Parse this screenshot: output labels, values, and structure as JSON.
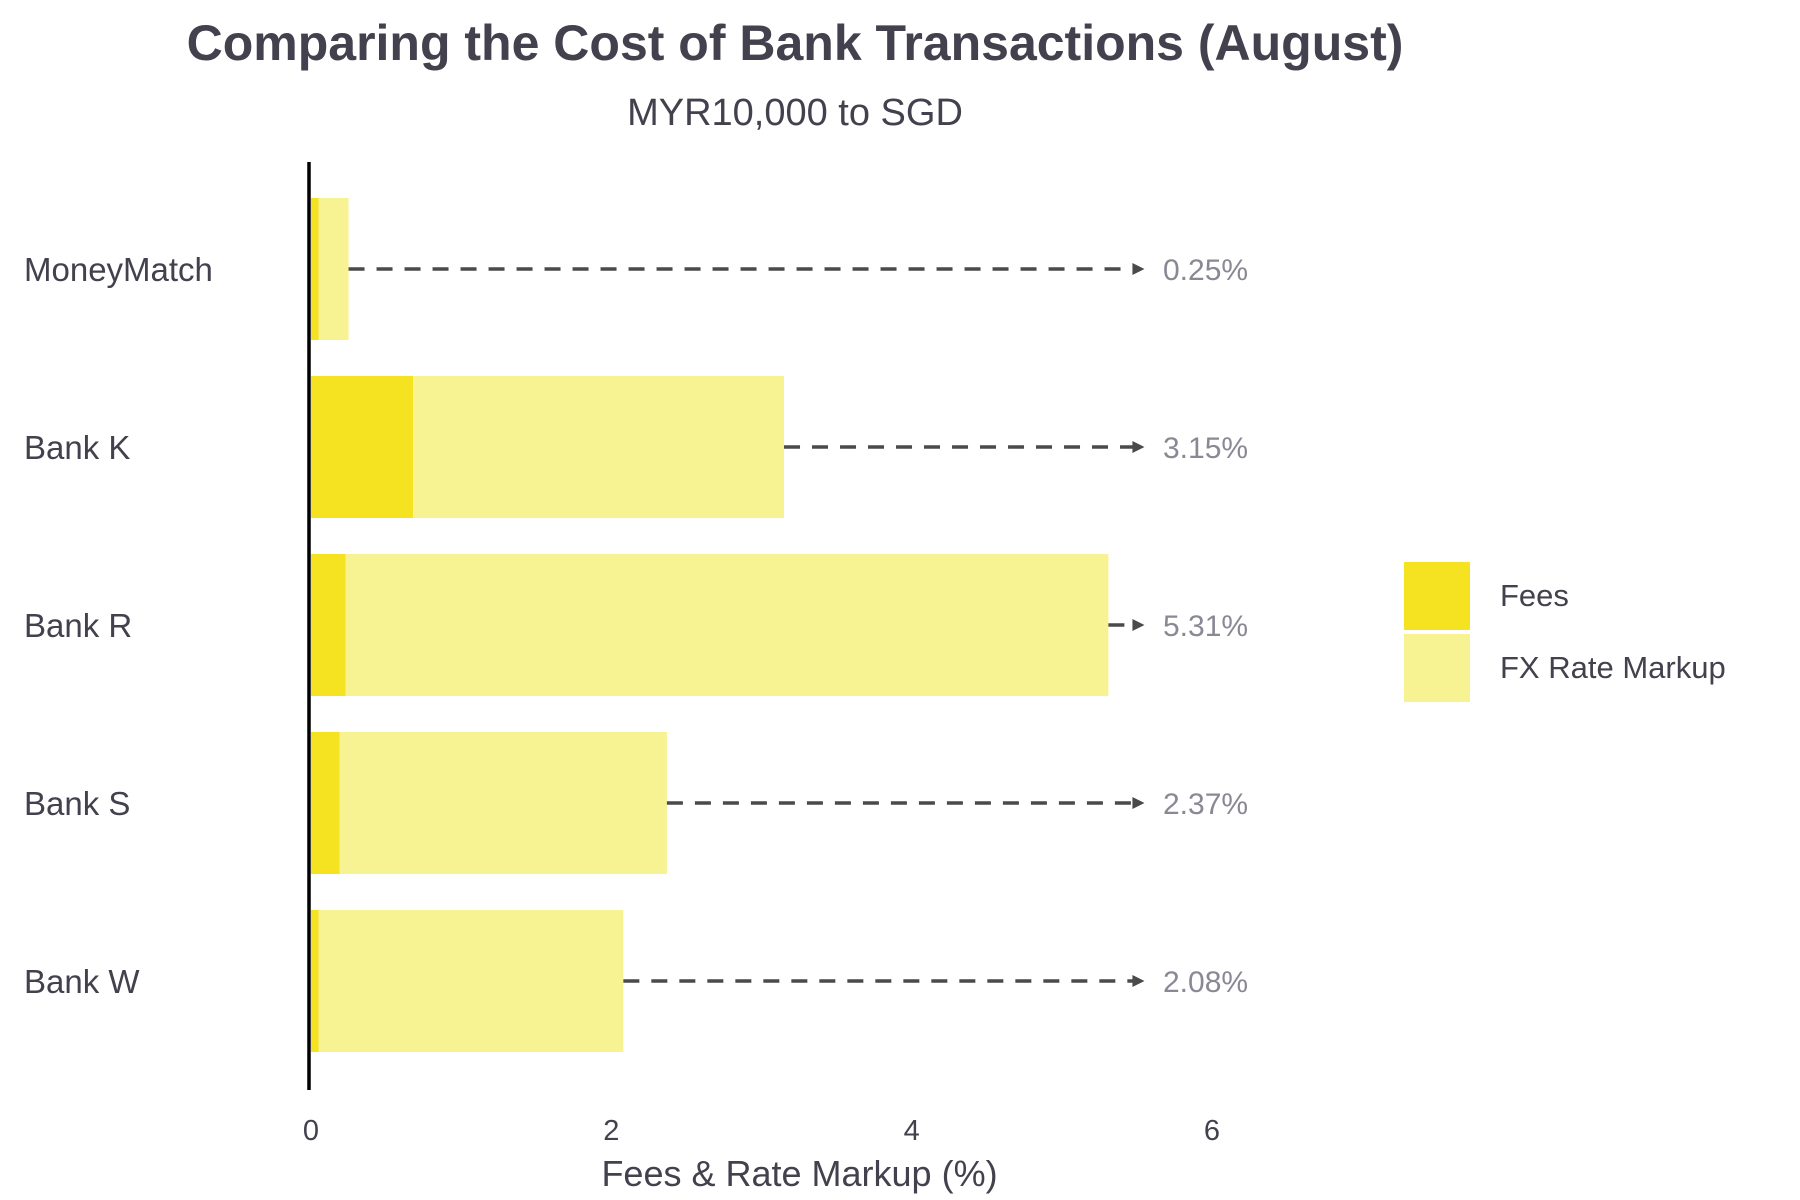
{
  "title": "Comparing the Cost of Bank Transactions (August)",
  "subtitle": "MYR10,000 to SGD",
  "chart_data": {
    "type": "bar",
    "orientation": "horizontal",
    "stacked": true,
    "categories": [
      "MoneyMatch",
      "Bank K",
      "Bank R",
      "Bank S",
      "Bank W"
    ],
    "series": [
      {
        "name": "Fees",
        "values": [
          0.05,
          0.68,
          0.23,
          0.19,
          0.05
        ],
        "color": "#f5e220"
      },
      {
        "name": "FX Rate Markup",
        "values": [
          0.2,
          2.47,
          5.08,
          2.18,
          2.03
        ],
        "color": "#f7f393"
      }
    ],
    "totals": [
      "0.25%",
      "3.15%",
      "5.31%",
      "2.37%",
      "2.08%"
    ],
    "xlabel": "Fees & Rate Markup (%)",
    "ylabel": "",
    "xlim": [
      0,
      6
    ],
    "xticks": [
      0,
      2,
      4,
      6
    ],
    "grid": false,
    "legend": "right",
    "arrow_color": "#4a4a4a"
  }
}
